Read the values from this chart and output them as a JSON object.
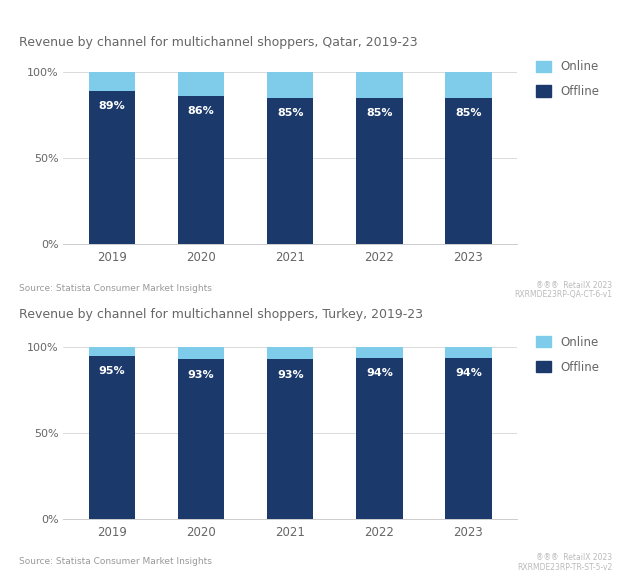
{
  "chart1": {
    "title": "Revenue by channel for multichannel shoppers, Qatar, 2019-23",
    "years": [
      "2019",
      "2020",
      "2021",
      "2022",
      "2023"
    ],
    "offline": [
      89,
      86,
      85,
      85,
      85
    ],
    "online": [
      11,
      14,
      15,
      15,
      15
    ],
    "source": "Source: Statista Consumer Market Insights",
    "watermark_line1": "®®®  RetailX 2023",
    "watermark_line2": "RXRMDE23RP-QA-CT-6-v1"
  },
  "chart2": {
    "title": "Revenue by channel for multichannel shoppers, Turkey, 2019-23",
    "years": [
      "2019",
      "2020",
      "2021",
      "2022",
      "2023"
    ],
    "offline": [
      95,
      93,
      93,
      94,
      94
    ],
    "online": [
      5,
      7,
      7,
      6,
      6
    ],
    "source": "Source: Statista Consumer Market Insights",
    "watermark_line1": "®®®  RetailX 2023",
    "watermark_line2": "RXRMDE23RP-TR-ST-5-v2"
  },
  "offline_color": "#1b3a6b",
  "online_color": "#7eccea",
  "bar_width": 0.52,
  "yticks": [
    0,
    50,
    100
  ],
  "ytick_labels": [
    "0%",
    "50%",
    "100%"
  ],
  "ylim": [
    0,
    110
  ],
  "label_color": "#ffffff",
  "title_color": "#666666",
  "axis_color": "#cccccc",
  "source_color": "#999999",
  "watermark_color": "#bbbbbb",
  "background_color": "#ffffff",
  "legend_online": "Online",
  "legend_offline": "Offline"
}
